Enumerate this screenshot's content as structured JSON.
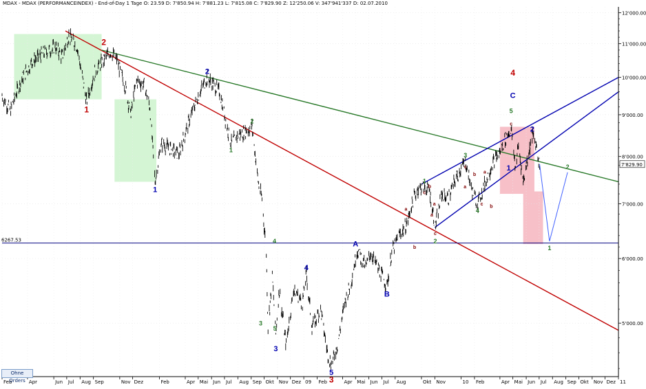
{
  "header": {
    "text": "MDAX - MDAX (PERFORMANCEINDEX) - End-of-Day 1 Tage  O: 23.59  D: 7'850.94  H: 7'881.23  L: 7'815.08  C: 7'829.90  Z: 12'250.06  V: 347'941'337  D: 02.07.2010"
  },
  "buttons": {
    "orders_label": "Ohne Orders"
  },
  "colors": {
    "price": "#000000",
    "red_line": "#c00000",
    "green_line": "#2a7a2a",
    "blue_channel": "#0000b0",
    "green_zone": "#d4f5d4",
    "red_zone": "#f7c0c8",
    "forecast_green": "#40a040",
    "forecast_blue": "#4060ff",
    "grid": "#cccccc"
  },
  "chart_data": {
    "type": "line",
    "title": "MDAX (PERFORMANCEINDEX)",
    "y_scale": "log",
    "ylim": [
      4300,
      12200
    ],
    "xlim": [
      "2007-02-01",
      "2011-01-01"
    ],
    "y_ticks": [
      {
        "value": 12000,
        "label": "12'000.00"
      },
      {
        "value": 11000,
        "label": "11'000.00"
      },
      {
        "value": 10000,
        "label": "10'000.00"
      },
      {
        "value": 9000,
        "label": "9'000.00"
      },
      {
        "value": 8000,
        "label": "8'000.00"
      },
      {
        "value": 7000,
        "label": "7'000.00"
      },
      {
        "value": 6000,
        "label": "6'000.00"
      },
      {
        "value": 5000,
        "label": "5'000.00"
      }
    ],
    "x_ticks": [
      {
        "date": "2007-02-01",
        "label": "Feb"
      },
      {
        "date": "2007-04-01",
        "label": "Apr"
      },
      {
        "date": "2007-06-01",
        "label": "Jun"
      },
      {
        "date": "2007-07-01",
        "label": "Jul"
      },
      {
        "date": "2007-08-01",
        "label": "Aug"
      },
      {
        "date": "2007-09-01",
        "label": "Sep"
      },
      {
        "date": "2007-11-01",
        "label": "Nov"
      },
      {
        "date": "2007-12-01",
        "label": "Dez"
      },
      {
        "date": "2008-02-01",
        "label": "Feb"
      },
      {
        "date": "2008-04-01",
        "label": "Apr"
      },
      {
        "date": "2008-05-01",
        "label": "Mai"
      },
      {
        "date": "2008-06-01",
        "label": "Jun"
      },
      {
        "date": "2008-07-01",
        "label": "Jul"
      },
      {
        "date": "2008-08-01",
        "label": "Aug"
      },
      {
        "date": "2008-09-01",
        "label": "Sep"
      },
      {
        "date": "2008-10-01",
        "label": "Okt"
      },
      {
        "date": "2008-11-01",
        "label": "Nov"
      },
      {
        "date": "2008-12-01",
        "label": "Dez"
      },
      {
        "date": "2009-01-01",
        "label": "09"
      },
      {
        "date": "2009-02-01",
        "label": "Feb"
      },
      {
        "date": "2009-04-01",
        "label": "Apr"
      },
      {
        "date": "2009-05-01",
        "label": "Mai"
      },
      {
        "date": "2009-06-01",
        "label": "Jun"
      },
      {
        "date": "2009-07-01",
        "label": "Jul"
      },
      {
        "date": "2009-08-01",
        "label": "Aug"
      },
      {
        "date": "2009-10-01",
        "label": "Okt"
      },
      {
        "date": "2009-11-01",
        "label": "Nov"
      },
      {
        "date": "2010-01-01",
        "label": "10"
      },
      {
        "date": "2010-02-01",
        "label": "Feb"
      },
      {
        "date": "2010-04-01",
        "label": "Apr"
      },
      {
        "date": "2010-05-01",
        "label": "Mai"
      },
      {
        "date": "2010-06-01",
        "label": "Jun"
      },
      {
        "date": "2010-07-01",
        "label": "Jul"
      },
      {
        "date": "2010-08-01",
        "label": "Aug"
      },
      {
        "date": "2010-09-01",
        "label": "Sep"
      },
      {
        "date": "2010-10-01",
        "label": "Okt"
      },
      {
        "date": "2010-11-01",
        "label": "Nov"
      },
      {
        "date": "2010-12-01",
        "label": "Dez"
      },
      {
        "date": "2011-01-01",
        "label": "11"
      }
    ],
    "price_series": {
      "name": "MDAX",
      "points": [
        [
          "2007-02-01",
          9500
        ],
        [
          "2007-02-20",
          9100
        ],
        [
          "2007-03-10",
          9700
        ],
        [
          "2007-03-25",
          10100
        ],
        [
          "2007-04-15",
          10500
        ],
        [
          "2007-05-15",
          10750
        ],
        [
          "2007-06-05",
          10900
        ],
        [
          "2007-06-20",
          10600
        ],
        [
          "2007-07-06",
          11250
        ],
        [
          "2007-07-25",
          10900
        ],
        [
          "2007-08-16",
          9350
        ],
        [
          "2007-09-05",
          10200
        ],
        [
          "2007-09-25",
          10500
        ],
        [
          "2007-10-10",
          10750
        ],
        [
          "2007-10-25",
          10500
        ],
        [
          "2007-11-15",
          9700
        ],
        [
          "2007-11-26",
          9000
        ],
        [
          "2007-12-10",
          9900
        ],
        [
          "2007-12-28",
          9800
        ],
        [
          "2008-01-10",
          9200
        ],
        [
          "2008-01-22",
          7450
        ],
        [
          "2008-02-05",
          8300
        ],
        [
          "2008-02-25",
          8200
        ],
        [
          "2008-03-17",
          8050
        ],
        [
          "2008-04-10",
          8850
        ],
        [
          "2008-05-05",
          9600
        ],
        [
          "2008-05-22",
          10000
        ],
        [
          "2008-06-05",
          9800
        ],
        [
          "2008-06-20",
          9600
        ],
        [
          "2008-07-05",
          8800
        ],
        [
          "2008-07-16",
          8300
        ],
        [
          "2008-08-01",
          8500
        ],
        [
          "2008-08-15",
          8550
        ],
        [
          "2008-09-03",
          8700
        ],
        [
          "2008-09-18",
          7400
        ],
        [
          "2008-09-26",
          7100
        ],
        [
          "2008-10-06",
          6100
        ],
        [
          "2008-10-10",
          4950
        ],
        [
          "2008-10-20",
          5700
        ],
        [
          "2008-10-28",
          4850
        ],
        [
          "2008-11-05",
          5500
        ],
        [
          "2008-11-21",
          4700
        ],
        [
          "2008-12-08",
          5500
        ],
        [
          "2008-12-29",
          5300
        ],
        [
          "2009-01-07",
          5750
        ],
        [
          "2009-01-20",
          4950
        ],
        [
          "2009-02-09",
          5200
        ],
        [
          "2009-02-25",
          4600
        ],
        [
          "2009-03-06",
          4450
        ],
        [
          "2009-03-20",
          4700
        ],
        [
          "2009-04-06",
          5300
        ],
        [
          "2009-04-20",
          5600
        ],
        [
          "2009-05-05",
          6150
        ],
        [
          "2009-05-25",
          5850
        ],
        [
          "2009-06-05",
          6100
        ],
        [
          "2009-06-25",
          5800
        ],
        [
          "2009-07-13",
          5550
        ],
        [
          "2009-07-24",
          6100
        ],
        [
          "2009-08-10",
          6400
        ],
        [
          "2009-08-28",
          6600
        ],
        [
          "2009-09-10",
          7050
        ],
        [
          "2009-09-23",
          7300
        ],
        [
          "2009-10-08",
          7350
        ],
        [
          "2009-10-20",
          7250
        ],
        [
          "2009-11-02",
          6550
        ],
        [
          "2009-11-17",
          7200
        ],
        [
          "2009-12-02",
          7100
        ],
        [
          "2009-12-21",
          7550
        ],
        [
          "2010-01-11",
          7900
        ],
        [
          "2010-01-25",
          7300
        ],
        [
          "2010-02-08",
          7000
        ],
        [
          "2010-02-25",
          7400
        ],
        [
          "2010-03-15",
          7850
        ],
        [
          "2010-04-01",
          8100
        ],
        [
          "2010-04-15",
          8450
        ],
        [
          "2010-04-27",
          8650
        ],
        [
          "2010-05-07",
          7750
        ],
        [
          "2010-05-14",
          8250
        ],
        [
          "2010-05-25",
          7450
        ],
        [
          "2010-06-05",
          8000
        ],
        [
          "2010-06-15",
          8500
        ],
        [
          "2010-06-22",
          8350
        ],
        [
          "2010-07-02",
          7830
        ]
      ]
    },
    "lines": [
      {
        "name": "red-trendline",
        "color": "#c00000",
        "from": [
          "2007-06-28",
          11400
        ],
        "to": [
          "2011-01-01",
          4900
        ]
      },
      {
        "name": "green-trendline",
        "color": "#2a7a2a",
        "from": [
          "2007-09-20",
          10800
        ],
        "to": [
          "2011-01-01",
          7450
        ]
      },
      {
        "name": "blue-channel-upper",
        "color": "#0000b0",
        "from": [
          "2009-10-01",
          7400
        ],
        "to": [
          "2011-01-01",
          10000
        ]
      },
      {
        "name": "blue-channel-lower",
        "color": "#0000b0",
        "from": [
          "2009-11-01",
          6550
        ],
        "to": [
          "2011-01-01",
          9600
        ]
      },
      {
        "name": "horizontal-6267",
        "color": "#000080",
        "from": [
          "2007-02-01",
          6267.53
        ],
        "to": [
          "2011-01-01",
          6267.53
        ]
      }
    ],
    "horizontal_label": "6267.53",
    "last_price_label": "7'829.90",
    "forecast_paths": [
      {
        "name": "forecast-blue",
        "color": "#4060ff",
        "points": [
          [
            "2010-07-02",
            7830
          ],
          [
            "2010-07-25",
            6300
          ],
          [
            "2010-09-05",
            7650
          ]
        ]
      }
    ],
    "zones": [
      {
        "name": "green-zone-1",
        "color": "#d4f5d4",
        "x0": "2007-03-01",
        "x1": "2007-09-20",
        "y0": 9400,
        "y1": 11300
      },
      {
        "name": "green-zone-2",
        "color": "#d4f5d4",
        "x0": "2007-10-20",
        "x1": "2008-01-25",
        "y0": 7450,
        "y1": 9400
      },
      {
        "name": "red-zone-1",
        "color": "#f7c0c8",
        "x0": "2010-04-01",
        "x1": "2010-06-20",
        "y0": 7200,
        "y1": 8700
      },
      {
        "name": "red-zone-2",
        "color": "#f7c0c8",
        "x0": "2010-05-25",
        "x1": "2010-07-10",
        "y0": 6250,
        "y1": 7250
      }
    ],
    "wave_labels": [
      {
        "text": "1",
        "color": "#c00000",
        "x": "2007-08-16",
        "y": 9350,
        "pos": "below",
        "size": 12
      },
      {
        "text": "2",
        "color": "#c00000",
        "x": "2007-09-25",
        "y": 10850,
        "pos": "above",
        "size": 12
      },
      {
        "text": "3",
        "color": "#c00000",
        "x": "2009-03-06",
        "y": 4450,
        "pos": "below2",
        "size": 12
      },
      {
        "text": "4",
        "color": "#c00000",
        "x": "2010-05-01",
        "y": 9950,
        "pos": "above",
        "size": 12
      },
      {
        "text": "1",
        "color": "#0000b0",
        "x": "2008-01-22",
        "y": 7450,
        "pos": "below",
        "size": 11
      },
      {
        "text": "2",
        "color": "#0000b0",
        "x": "2008-05-22",
        "y": 10000,
        "pos": "above",
        "size": 11
      },
      {
        "text": "3",
        "color": "#0000b0",
        "x": "2008-10-28",
        "y": 4850,
        "pos": "below2",
        "size": 11
      },
      {
        "text": "4",
        "color": "#0000b0",
        "x": "2009-01-07",
        "y": 5750,
        "pos": "above",
        "size": 11
      },
      {
        "text": "5",
        "color": "#0000b0",
        "x": "2009-03-06",
        "y": 4450,
        "pos": "below",
        "size": 11
      },
      {
        "text": "A",
        "color": "#0000b0",
        "x": "2009-05-01",
        "y": 6150,
        "pos": "above",
        "size": 11
      },
      {
        "text": "B",
        "color": "#0000b0",
        "x": "2009-07-13",
        "y": 5550,
        "pos": "below",
        "size": 11
      },
      {
        "text": "C",
        "color": "#0000b0",
        "x": "2010-05-01",
        "y": 9350,
        "pos": "above",
        "size": 11
      },
      {
        "text": "1",
        "color": "#0000b0",
        "x": "2010-05-07",
        "y": 7750,
        "pos": "left",
        "size": 11
      },
      {
        "text": "2",
        "color": "#0000b0",
        "x": "2010-06-15",
        "y": 8500,
        "pos": "above",
        "size": 11
      },
      {
        "text": "1",
        "color": "#2a7a2a",
        "x": "2008-07-16",
        "y": 8300,
        "pos": "below",
        "size": 9
      },
      {
        "text": "2",
        "color": "#2a7a2a",
        "x": "2008-09-03",
        "y": 8700,
        "pos": "above",
        "size": 9
      },
      {
        "text": "3",
        "color": "#2a7a2a",
        "x": "2008-10-06",
        "y": 5000,
        "pos": "left",
        "size": 9
      },
      {
        "text": "4",
        "color": "#2a7a2a",
        "x": "2008-10-12",
        "y": 6300,
        "pos": "right",
        "size": 9
      },
      {
        "text": "5",
        "color": "#2a7a2a",
        "x": "2008-10-26",
        "y": 4850,
        "pos": "above",
        "size": 9
      },
      {
        "text": "1",
        "color": "#2a7a2a",
        "x": "2009-10-08",
        "y": 7350,
        "pos": "above",
        "size": 9
      },
      {
        "text": "2",
        "color": "#2a7a2a",
        "x": "2009-11-02",
        "y": 6550,
        "pos": "below2",
        "size": 9
      },
      {
        "text": "3",
        "color": "#2a7a2a",
        "x": "2010-01-11",
        "y": 7900,
        "pos": "above",
        "size": 9
      },
      {
        "text": "4",
        "color": "#2a7a2a",
        "x": "2010-02-08",
        "y": 7000,
        "pos": "below",
        "size": 9
      },
      {
        "text": "5",
        "color": "#2a7a2a",
        "x": "2010-04-27",
        "y": 8800,
        "pos": "above2",
        "size": 9
      },
      {
        "text": "1",
        "color": "#2a7a2a",
        "x": "2010-07-25",
        "y": 6300,
        "pos": "below",
        "size": 9
      },
      {
        "text": "2",
        "color": "#2a7a2a",
        "x": "2010-09-05",
        "y": 7650,
        "pos": "above",
        "size": 9
      },
      {
        "text": "a",
        "color": "#800000",
        "x": "2009-09-05",
        "y": 6900,
        "pos": "left",
        "size": 7
      },
      {
        "text": "b",
        "color": "#800000",
        "x": "2009-09-15",
        "y": 6300,
        "pos": "below",
        "size": 7
      },
      {
        "text": "c",
        "color": "#800000",
        "x": "2009-10-08",
        "y": 7350,
        "pos": "below",
        "size": 7
      },
      {
        "text": "b",
        "color": "#800000",
        "x": "2009-10-20",
        "y": 7250,
        "pos": "above",
        "size": 7
      },
      {
        "text": "a",
        "color": "#800000",
        "x": "2009-10-25",
        "y": 6900,
        "pos": "below",
        "size": 7
      },
      {
        "text": "c",
        "color": "#800000",
        "x": "2009-11-02",
        "y": 6550,
        "pos": "below",
        "size": 7
      },
      {
        "text": "a",
        "color": "#800000",
        "x": "2009-11-10",
        "y": 7000,
        "pos": "left",
        "size": 7
      },
      {
        "text": "c",
        "color": "#800000",
        "x": "2010-01-11",
        "y": 7900,
        "pos": "below",
        "size": 7
      },
      {
        "text": "a",
        "color": "#800000",
        "x": "2010-01-20",
        "y": 7350,
        "pos": "left",
        "size": 7
      },
      {
        "text": "b",
        "color": "#800000",
        "x": "2010-02-01",
        "y": 7500,
        "pos": "above",
        "size": 7
      },
      {
        "text": "c",
        "color": "#800000",
        "x": "2010-02-08",
        "y": 7000,
        "pos": "right",
        "size": 7
      },
      {
        "text": "a",
        "color": "#800000",
        "x": "2010-02-25",
        "y": 7550,
        "pos": "above",
        "size": 7
      },
      {
        "text": "b",
        "color": "#800000",
        "x": "2010-03-02",
        "y": 6950,
        "pos": "right",
        "size": 7
      },
      {
        "text": "c",
        "color": "#800000",
        "x": "2010-04-27",
        "y": 8650,
        "pos": "above",
        "size": 7
      }
    ]
  }
}
